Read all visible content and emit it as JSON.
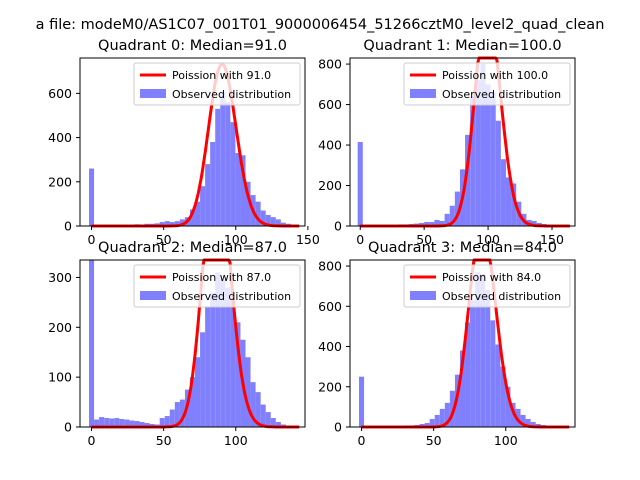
{
  "figure": {
    "suptitle": "a file: modeM0/AS1C07_001T01_9000006454_51266cztM0_level2_quad_clean"
  },
  "colors": {
    "bars": "#8080ff",
    "poisson": "#ff0000",
    "axes": "#000000"
  },
  "chart_data": [
    {
      "type": "bar",
      "title": "Quadrant 0: Median=91.0",
      "xlim": [
        -8,
        148
      ],
      "ylim": [
        0,
        760
      ],
      "xticks": [
        0,
        50,
        100,
        150
      ],
      "yticks": [
        0,
        200,
        400,
        600
      ],
      "bin_width": 3.5,
      "bins": [
        [
          0,
          260
        ],
        [
          3.5,
          4
        ],
        [
          7,
          5
        ],
        [
          10.5,
          4
        ],
        [
          14,
          4
        ],
        [
          17.5,
          5
        ],
        [
          21,
          6
        ],
        [
          24.5,
          6
        ],
        [
          28,
          5
        ],
        [
          31.5,
          8
        ],
        [
          35,
          7
        ],
        [
          38.5,
          10
        ],
        [
          42,
          10
        ],
        [
          45.5,
          12
        ],
        [
          49,
          18
        ],
        [
          52.5,
          22
        ],
        [
          56,
          18
        ],
        [
          59.5,
          22
        ],
        [
          63,
          30
        ],
        [
          66.5,
          40
        ],
        [
          70,
          75
        ],
        [
          73.5,
          110
        ],
        [
          77,
          180
        ],
        [
          80.5,
          280
        ],
        [
          84,
          380
        ],
        [
          87.5,
          530
        ],
        [
          91,
          605
        ],
        [
          94.5,
          560
        ],
        [
          98,
          470
        ],
        [
          101.5,
          330
        ],
        [
          105,
          320
        ],
        [
          108.5,
          200
        ],
        [
          112,
          140
        ],
        [
          115.5,
          110
        ],
        [
          119,
          70
        ],
        [
          122.5,
          50
        ],
        [
          126,
          40
        ],
        [
          129.5,
          30
        ],
        [
          133,
          15
        ],
        [
          136.5,
          10
        ],
        [
          140,
          5
        ]
      ],
      "poisson_mean": 91.0,
      "legend": {
        "entries": [
          "Poission with 91.0",
          "Observed distribution"
        ],
        "loc": "upper right"
      }
    },
    {
      "type": "bar",
      "title": "Quadrant 1: Median=100.0",
      "xlim": [
        -8,
        168
      ],
      "ylim": [
        0,
        830
      ],
      "xticks": [
        0,
        50,
        100,
        150
      ],
      "yticks": [
        0,
        200,
        400,
        600,
        800
      ],
      "bin_width": 4,
      "bins": [
        [
          0,
          415
        ],
        [
          4,
          5
        ],
        [
          8,
          3
        ],
        [
          12,
          4
        ],
        [
          16,
          5
        ],
        [
          20,
          4
        ],
        [
          24,
          6
        ],
        [
          28,
          5
        ],
        [
          32,
          8
        ],
        [
          36,
          8
        ],
        [
          40,
          10
        ],
        [
          44,
          12
        ],
        [
          48,
          15
        ],
        [
          52,
          20
        ],
        [
          56,
          20
        ],
        [
          60,
          30
        ],
        [
          64,
          25
        ],
        [
          68,
          60
        ],
        [
          72,
          100
        ],
        [
          76,
          170
        ],
        [
          80,
          280
        ],
        [
          84,
          450
        ],
        [
          88,
          640
        ],
        [
          92,
          720
        ],
        [
          96,
          800
        ],
        [
          100,
          700
        ],
        [
          104,
          660
        ],
        [
          108,
          520
        ],
        [
          112,
          330
        ],
        [
          116,
          240
        ],
        [
          120,
          210
        ],
        [
          124,
          120
        ],
        [
          128,
          60
        ],
        [
          132,
          30
        ],
        [
          136,
          25
        ],
        [
          140,
          15
        ],
        [
          144,
          10
        ],
        [
          148,
          5
        ],
        [
          152,
          5
        ]
      ],
      "poisson_mean": 100.0,
      "legend": {
        "entries": [
          "Poission with 100.0",
          "Observed distribution"
        ],
        "loc": "upper right"
      }
    },
    {
      "type": "bar",
      "title": "Quadrant 2: Median=87.0",
      "xlim": [
        -8,
        148
      ],
      "ylim": [
        0,
        335
      ],
      "xticks": [
        0,
        50,
        100
      ],
      "yticks": [
        0,
        100,
        200,
        300
      ],
      "bin_width": 3.5,
      "bins": [
        [
          0,
          335
        ],
        [
          3.5,
          15
        ],
        [
          7,
          20
        ],
        [
          10.5,
          18
        ],
        [
          14,
          17
        ],
        [
          17.5,
          18
        ],
        [
          21,
          16
        ],
        [
          24.5,
          15
        ],
        [
          28,
          13
        ],
        [
          31.5,
          12
        ],
        [
          35,
          10
        ],
        [
          38.5,
          8
        ],
        [
          42,
          6
        ],
        [
          45.5,
          5
        ],
        [
          49,
          18
        ],
        [
          52.5,
          22
        ],
        [
          56,
          35
        ],
        [
          59.5,
          50
        ],
        [
          63,
          55
        ],
        [
          66.5,
          75
        ],
        [
          70,
          100
        ],
        [
          73.5,
          140
        ],
        [
          77,
          190
        ],
        [
          80.5,
          240
        ],
        [
          84,
          270
        ],
        [
          87.5,
          310
        ],
        [
          91,
          295
        ],
        [
          94.5,
          280
        ],
        [
          98,
          255
        ],
        [
          101.5,
          210
        ],
        [
          105,
          175
        ],
        [
          108.5,
          140
        ],
        [
          112,
          90
        ],
        [
          115.5,
          70
        ],
        [
          119,
          45
        ],
        [
          122.5,
          30
        ],
        [
          126,
          18
        ],
        [
          129.5,
          10
        ],
        [
          133,
          5
        ]
      ],
      "poisson_mean": 87.0,
      "legend": {
        "entries": [
          "Poission with 87.0",
          "Observed distribution"
        ],
        "loc": "upper right"
      }
    },
    {
      "type": "bar",
      "title": "Quadrant 3: Median=84.0",
      "xlim": [
        -8,
        148
      ],
      "ylim": [
        0,
        830
      ],
      "xticks": [
        0,
        50,
        100
      ],
      "yticks": [
        0,
        200,
        400,
        600,
        800
      ],
      "bin_width": 3.5,
      "bins": [
        [
          0,
          250
        ],
        [
          3.5,
          3
        ],
        [
          7,
          4
        ],
        [
          10.5,
          3
        ],
        [
          14,
          4
        ],
        [
          17.5,
          5
        ],
        [
          21,
          4
        ],
        [
          24.5,
          5
        ],
        [
          28,
          6
        ],
        [
          31.5,
          8
        ],
        [
          35,
          8
        ],
        [
          38.5,
          10
        ],
        [
          42,
          15
        ],
        [
          45.5,
          20
        ],
        [
          49,
          40
        ],
        [
          52.5,
          60
        ],
        [
          56,
          90
        ],
        [
          59.5,
          120
        ],
        [
          63,
          180
        ],
        [
          66.5,
          260
        ],
        [
          70,
          380
        ],
        [
          73.5,
          520
        ],
        [
          77,
          630
        ],
        [
          80.5,
          770
        ],
        [
          84,
          760
        ],
        [
          87.5,
          680
        ],
        [
          91,
          530
        ],
        [
          94.5,
          410
        ],
        [
          98,
          300
        ],
        [
          101.5,
          200
        ],
        [
          105,
          120
        ],
        [
          108.5,
          90
        ],
        [
          112,
          60
        ],
        [
          115.5,
          40
        ],
        [
          119,
          25
        ],
        [
          122.5,
          15
        ],
        [
          126,
          10
        ],
        [
          129.5,
          5
        ]
      ],
      "poisson_mean": 84.0,
      "legend": {
        "entries": [
          "Poission with 84.0",
          "Observed distribution"
        ],
        "loc": "upper right"
      }
    }
  ]
}
